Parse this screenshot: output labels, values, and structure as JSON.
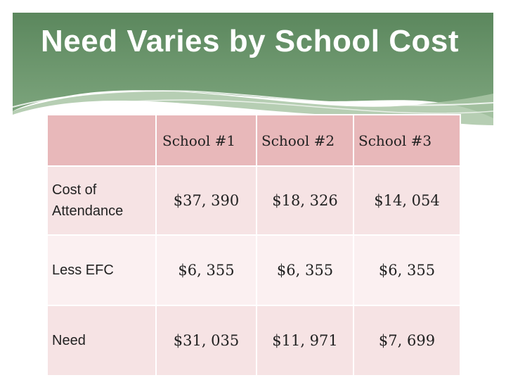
{
  "slide": {
    "title": "Need Varies by School Cost"
  },
  "table": {
    "header_label": "",
    "columns": [
      "School #1",
      "School #2",
      "School #3"
    ],
    "rows": [
      {
        "label": "Cost of Attendance",
        "values": [
          "$37, 390",
          "$18, 326",
          "$14, 054"
        ]
      },
      {
        "label": "Less EFC",
        "values": [
          "$6, 355",
          "$6, 355",
          "$6, 355"
        ]
      },
      {
        "label": "Need",
        "values": [
          "$31, 035",
          "$11, 971",
          "$7, 699"
        ]
      }
    ]
  },
  "colors": {
    "banner_dark": "#5e8a60",
    "banner_light": "#a9c6a6",
    "header_fill": "#e8b8ba",
    "row_fill_odd": "#f6e3e4",
    "row_fill_even": "#fbf0f1"
  }
}
